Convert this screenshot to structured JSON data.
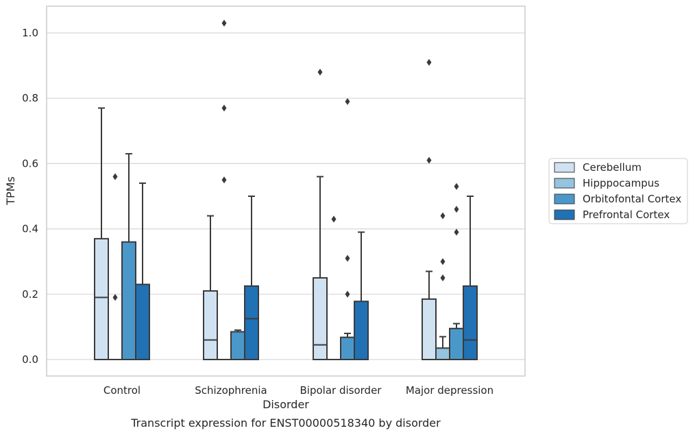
{
  "chart_data": {
    "type": "box",
    "xlabel": "Disorder",
    "ylabel": "TPMs",
    "caption": "Transcript expression for ENST00000518340 by disorder",
    "categories": [
      "Control",
      "Schizophrenia",
      "Bipolar disorder",
      "Major depression"
    ],
    "ylim": [
      -0.05,
      1.08
    ],
    "yticks": [
      0.0,
      0.2,
      0.4,
      0.6,
      0.8,
      1.0
    ],
    "ytick_labels": [
      "0.0",
      "0.2",
      "0.4",
      "0.6",
      "0.8",
      "1.0"
    ],
    "grid": true,
    "legend_placement": "right",
    "series": [
      {
        "name": "Cerebellum",
        "color": "#d0e1f2",
        "boxes": [
          {
            "q1": 0.0,
            "median": 0.19,
            "q3": 0.37,
            "whisker_low": 0.0,
            "whisker_high": 0.77,
            "outliers": []
          },
          {
            "q1": 0.0,
            "median": 0.06,
            "q3": 0.21,
            "whisker_low": 0.0,
            "whisker_high": 0.44,
            "outliers": []
          },
          {
            "q1": 0.0,
            "median": 0.045,
            "q3": 0.25,
            "whisker_low": 0.0,
            "whisker_high": 0.56,
            "outliers": [
              0.88
            ]
          },
          {
            "q1": 0.0,
            "median": 0.0,
            "q3": 0.185,
            "whisker_low": 0.0,
            "whisker_high": 0.27,
            "outliers": [
              0.91,
              0.61
            ]
          }
        ]
      },
      {
        "name": "Hipppocampus",
        "color": "#94c4df",
        "boxes": [
          {
            "q1": 0.0,
            "median": 0.0,
            "q3": 0.0,
            "whisker_low": 0.0,
            "whisker_high": 0.0,
            "outliers": [
              0.56,
              0.19
            ]
          },
          {
            "q1": 0.0,
            "median": 0.0,
            "q3": 0.0,
            "whisker_low": 0.0,
            "whisker_high": 0.0,
            "outliers": [
              1.03,
              0.77,
              0.55
            ]
          },
          {
            "q1": 0.0,
            "median": 0.0,
            "q3": 0.0,
            "whisker_low": 0.0,
            "whisker_high": 0.0,
            "outliers": [
              0.43
            ]
          },
          {
            "q1": 0.0,
            "median": 0.0,
            "q3": 0.035,
            "whisker_low": 0.0,
            "whisker_high": 0.07,
            "outliers": [
              0.44,
              0.3,
              0.25
            ]
          }
        ]
      },
      {
        "name": "Orbitofontal Cortex",
        "color": "#4a98c9",
        "boxes": [
          {
            "q1": 0.0,
            "median": 0.0,
            "q3": 0.36,
            "whisker_low": 0.0,
            "whisker_high": 0.63,
            "outliers": []
          },
          {
            "q1": 0.0,
            "median": 0.0,
            "q3": 0.085,
            "whisker_low": 0.0,
            "whisker_high": 0.09,
            "outliers": []
          },
          {
            "q1": 0.0,
            "median": 0.0,
            "q3": 0.068,
            "whisker_low": 0.0,
            "whisker_high": 0.08,
            "outliers": [
              0.79,
              0.31,
              0.2
            ]
          },
          {
            "q1": 0.0,
            "median": 0.0,
            "q3": 0.095,
            "whisker_low": 0.0,
            "whisker_high": 0.11,
            "outliers": [
              0.53,
              0.46,
              0.39
            ]
          }
        ]
      },
      {
        "name": "Prefrontal Cortex",
        "color": "#2171b5",
        "boxes": [
          {
            "q1": 0.0,
            "median": 0.0,
            "q3": 0.23,
            "whisker_low": 0.0,
            "whisker_high": 0.54,
            "outliers": []
          },
          {
            "q1": 0.0,
            "median": 0.125,
            "q3": 0.225,
            "whisker_low": 0.0,
            "whisker_high": 0.5,
            "outliers": []
          },
          {
            "q1": 0.0,
            "median": 0.0,
            "q3": 0.178,
            "whisker_low": 0.0,
            "whisker_high": 0.39,
            "outliers": []
          },
          {
            "q1": 0.0,
            "median": 0.06,
            "q3": 0.225,
            "whisker_low": 0.0,
            "whisker_high": 0.5,
            "outliers": []
          }
        ]
      }
    ]
  }
}
